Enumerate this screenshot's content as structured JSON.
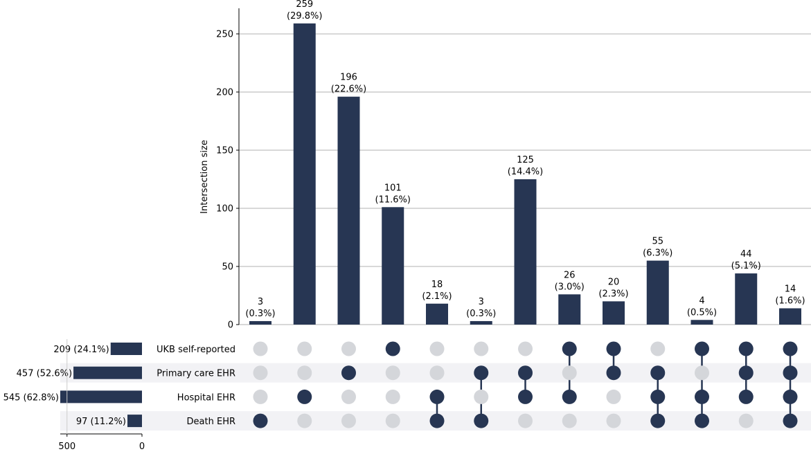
{
  "chart_data": {
    "type": "upset",
    "ylabel": "Intersection size",
    "ylim": [
      0,
      272
    ],
    "yticks": [
      0,
      50,
      100,
      150,
      200,
      250
    ],
    "grid": true,
    "sets": [
      {
        "name": "UKB self-reported",
        "size": 209,
        "label": "209 (24.1%)"
      },
      {
        "name": "Primary care EHR",
        "size": 457,
        "label": "457 (52.6%)"
      },
      {
        "name": "Hospital EHR",
        "size": 545,
        "label": "545 (62.8%)"
      },
      {
        "name": "Death EHR",
        "size": 97,
        "label": "97 (11.2%)"
      }
    ],
    "set_size_ticks": [
      500,
      0
    ],
    "set_size_xlim": [
      0,
      545
    ],
    "intersections": [
      {
        "members": [
          "Death EHR"
        ],
        "size": 3,
        "count_label": "3",
        "pct_label": "(0.3%)"
      },
      {
        "members": [
          "Hospital EHR"
        ],
        "size": 259,
        "count_label": "259",
        "pct_label": "(29.8%)"
      },
      {
        "members": [
          "Primary care EHR"
        ],
        "size": 196,
        "count_label": "196",
        "pct_label": "(22.6%)"
      },
      {
        "members": [
          "UKB self-reported"
        ],
        "size": 101,
        "count_label": "101",
        "pct_label": "(11.6%)"
      },
      {
        "members": [
          "Hospital EHR",
          "Death EHR"
        ],
        "size": 18,
        "count_label": "18",
        "pct_label": "(2.1%)"
      },
      {
        "members": [
          "Primary care EHR",
          "Death EHR"
        ],
        "size": 3,
        "count_label": "3",
        "pct_label": "(0.3%)"
      },
      {
        "members": [
          "Primary care EHR",
          "Hospital EHR"
        ],
        "size": 125,
        "count_label": "125",
        "pct_label": "(14.4%)"
      },
      {
        "members": [
          "UKB self-reported",
          "Hospital EHR"
        ],
        "size": 26,
        "count_label": "26",
        "pct_label": "(3.0%)"
      },
      {
        "members": [
          "UKB self-reported",
          "Primary care EHR"
        ],
        "size": 20,
        "count_label": "20",
        "pct_label": "(2.3%)"
      },
      {
        "members": [
          "Primary care EHR",
          "Hospital EHR",
          "Death EHR"
        ],
        "size": 55,
        "count_label": "55",
        "pct_label": "(6.3%)"
      },
      {
        "members": [
          "UKB self-reported",
          "Hospital EHR",
          "Death EHR"
        ],
        "size": 4,
        "count_label": "4",
        "pct_label": "(0.5%)"
      },
      {
        "members": [
          "UKB self-reported",
          "Primary care EHR",
          "Hospital EHR"
        ],
        "size": 44,
        "count_label": "44",
        "pct_label": "(5.1%)"
      },
      {
        "members": [
          "UKB self-reported",
          "Primary care EHR",
          "Hospital EHR",
          "Death EHR"
        ],
        "size": 14,
        "count_label": "14",
        "pct_label": "(1.6%)"
      }
    ],
    "colors": {
      "bar": "#273653",
      "dot_active": "#273653",
      "dot_inactive": "#d4d6da",
      "stripe": "#f2f2f5",
      "grid": "#b0b0b0",
      "axis": "#000000"
    }
  }
}
